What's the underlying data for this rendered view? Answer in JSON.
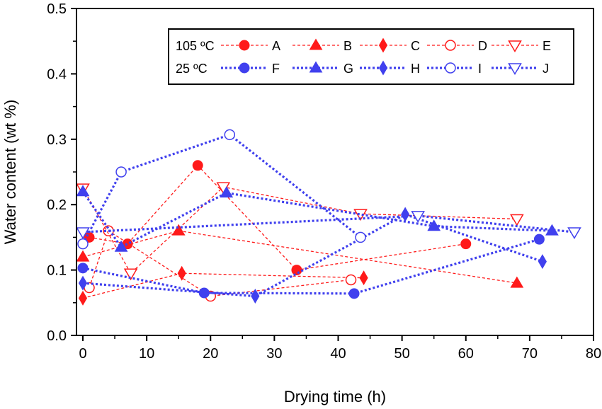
{
  "chart_data": {
    "type": "scatter",
    "title": "",
    "xlabel": "Drying time (h)",
    "ylabel": "Water content (wt %)",
    "xlim": [
      -1,
      80
    ],
    "ylim": [
      0,
      0.5
    ],
    "xticks": [
      "0",
      "10",
      "20",
      "30",
      "40",
      "50",
      "60",
      "70",
      "80"
    ],
    "yticks": [
      "0.0",
      "0.1",
      "0.2",
      "0.3",
      "0.4",
      "0.5"
    ],
    "grid": false,
    "legend_position": "top-right",
    "legend": {
      "group_labels": [
        "105 ºC",
        "25 ºC"
      ]
    },
    "colors": {
      "hot": "#ff1a1a",
      "cold": "#4040ee"
    },
    "series": [
      {
        "name": "A",
        "group": "105",
        "marker": "circle",
        "filled": true,
        "x": [
          1,
          7,
          18,
          33.5,
          60
        ],
        "y": [
          0.15,
          0.14,
          0.26,
          0.1,
          0.14
        ]
      },
      {
        "name": "B",
        "group": "105",
        "marker": "triangle-up",
        "filled": true,
        "x": [
          0,
          15,
          68
        ],
        "y": [
          0.12,
          0.16,
          0.08
        ]
      },
      {
        "name": "C",
        "group": "105",
        "marker": "diamond",
        "filled": true,
        "x": [
          0,
          15.5,
          44
        ],
        "y": [
          0.057,
          0.095,
          0.088
        ]
      },
      {
        "name": "D",
        "group": "105",
        "marker": "circle",
        "filled": false,
        "x": [
          1,
          4,
          20,
          42
        ],
        "y": [
          0.073,
          0.16,
          0.06,
          0.085
        ]
      },
      {
        "name": "E",
        "group": "105",
        "marker": "triangle-down",
        "filled": false,
        "x": [
          0,
          7.5,
          22,
          43.5,
          68
        ],
        "y": [
          0.225,
          0.095,
          0.227,
          0.186,
          0.178
        ]
      },
      {
        "name": "F",
        "group": "25",
        "marker": "circle",
        "filled": true,
        "x": [
          0,
          19,
          42.5,
          71.5
        ],
        "y": [
          0.103,
          0.065,
          0.064,
          0.147
        ]
      },
      {
        "name": "G",
        "group": "25",
        "marker": "triangle-up",
        "filled": true,
        "x": [
          0,
          6,
          22.5,
          55,
          73.5
        ],
        "y": [
          0.22,
          0.135,
          0.218,
          0.167,
          0.16
        ]
      },
      {
        "name": "H",
        "group": "25",
        "marker": "diamond",
        "filled": true,
        "x": [
          0,
          27,
          50.5,
          72
        ],
        "y": [
          0.08,
          0.06,
          0.185,
          0.113
        ]
      },
      {
        "name": "I",
        "group": "25",
        "marker": "circle",
        "filled": false,
        "x": [
          0,
          6,
          23,
          43.5
        ],
        "y": [
          0.14,
          0.25,
          0.307,
          0.15
        ]
      },
      {
        "name": "J",
        "group": "25",
        "marker": "triangle-down",
        "filled": false,
        "x": [
          0,
          52.5,
          77
        ],
        "y": [
          0.158,
          0.183,
          0.158
        ]
      }
    ]
  }
}
